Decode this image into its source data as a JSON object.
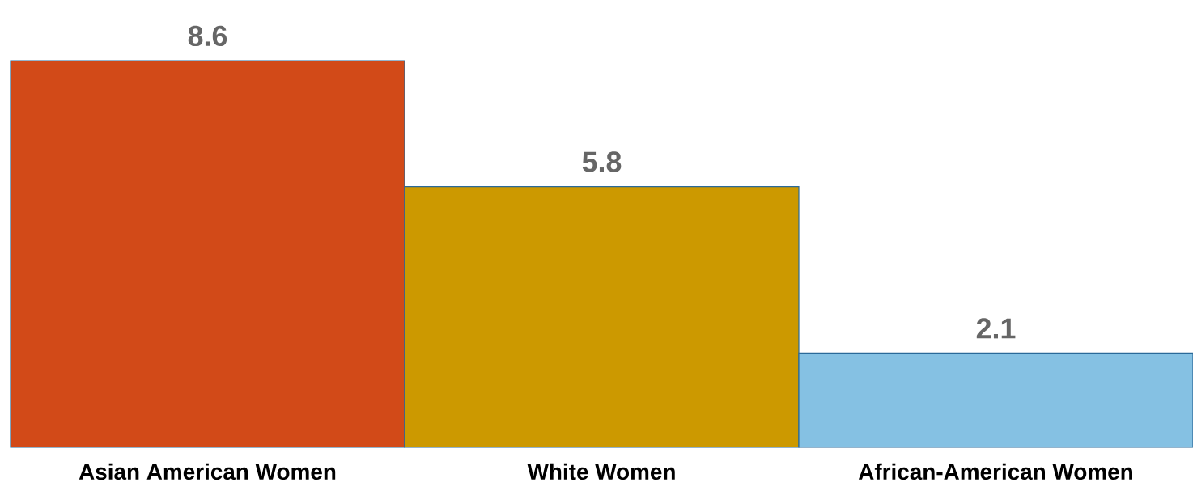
{
  "chart_data": {
    "type": "bar",
    "categories": [
      "Asian American Women",
      "White Women",
      "African-American Women"
    ],
    "values": [
      8.6,
      5.8,
      2.1
    ],
    "colors": [
      "#d24a18",
      "#cc9900",
      "#85c1e3"
    ],
    "data_labels": true
  }
}
